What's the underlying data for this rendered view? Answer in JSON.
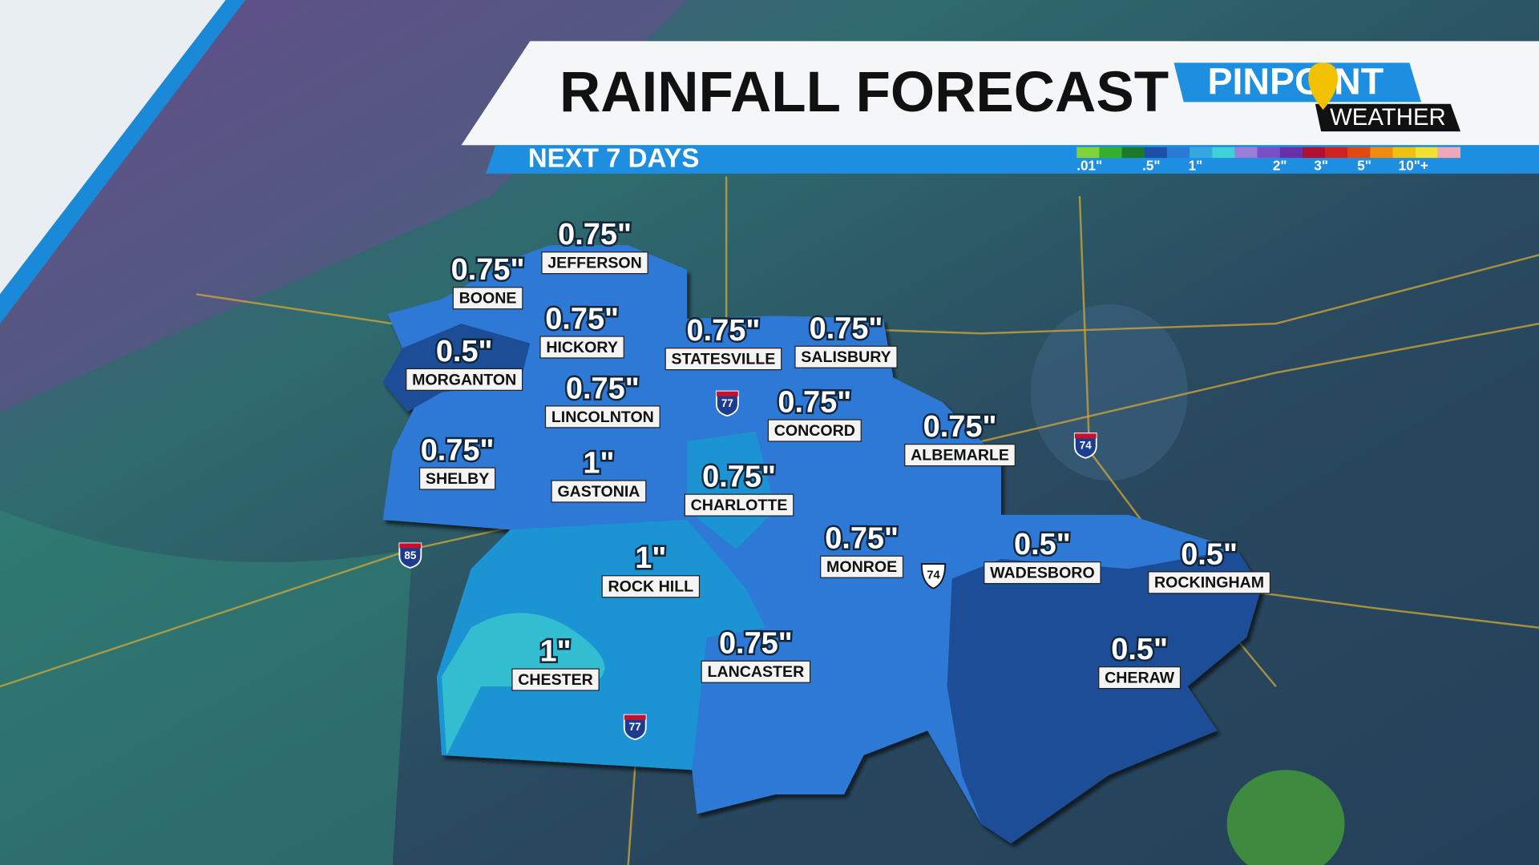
{
  "header": {
    "title": "RAINFALL FORECAST",
    "subtitle": "NEXT 7 DAYS",
    "brand": {
      "top": "PINPOINT",
      "bottom": "WEATHER"
    }
  },
  "legend": {
    "labels": [
      ".01\"",
      ".5\"",
      "1\"",
      "2\"",
      "3\"",
      "5\"",
      "10\"+"
    ]
  },
  "cities": [
    {
      "name": "JEFFERSON",
      "amount": "0.75\""
    },
    {
      "name": "BOONE",
      "amount": "0.75\""
    },
    {
      "name": "HICKORY",
      "amount": "0.75\""
    },
    {
      "name": "MORGANTON",
      "amount": "0.5\""
    },
    {
      "name": "STATESVILLE",
      "amount": "0.75\""
    },
    {
      "name": "SALISBURY",
      "amount": "0.75\""
    },
    {
      "name": "LINCOLNTON",
      "amount": "0.75\""
    },
    {
      "name": "CONCORD",
      "amount": "0.75\""
    },
    {
      "name": "ALBEMARLE",
      "amount": "0.75\""
    },
    {
      "name": "SHELBY",
      "amount": "0.75\""
    },
    {
      "name": "GASTONIA",
      "amount": "1\""
    },
    {
      "name": "CHARLOTTE",
      "amount": "0.75\""
    },
    {
      "name": "MONROE",
      "amount": "0.75\""
    },
    {
      "name": "WADESBORO",
      "amount": "0.5\""
    },
    {
      "name": "ROCKINGHAM",
      "amount": "0.5\""
    },
    {
      "name": "ROCK HILL",
      "amount": "1\""
    },
    {
      "name": "LANCASTER",
      "amount": "0.75\""
    },
    {
      "name": "CHERAW",
      "amount": "0.5\""
    },
    {
      "name": "CHESTER",
      "amount": "1\""
    }
  ],
  "highways": [
    "77",
    "74",
    "85",
    "77",
    "74"
  ]
}
